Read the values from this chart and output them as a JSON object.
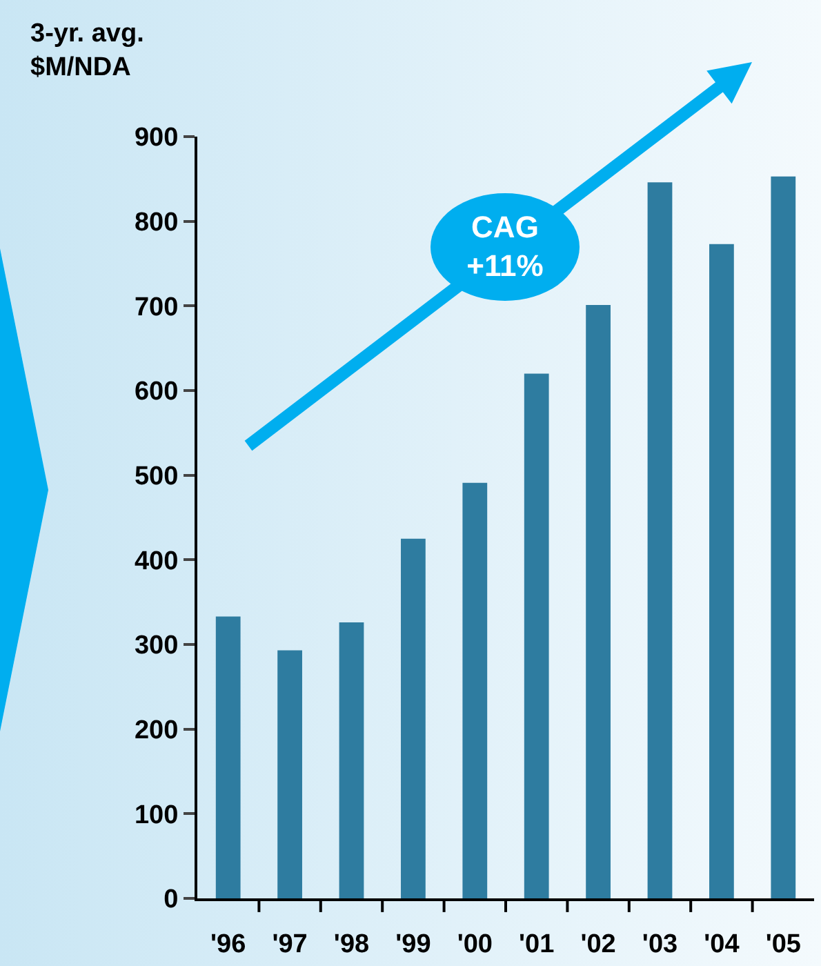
{
  "chart_data": {
    "type": "bar",
    "ylabel": "3-yr. avg.\n$M/NDA",
    "categories": [
      "'96",
      "'97",
      "'98",
      "'99",
      "'00",
      "'01",
      "'02",
      "'03",
      "'04",
      "'05"
    ],
    "values": [
      333,
      293,
      326,
      425,
      491,
      620,
      701,
      846,
      773,
      853
    ],
    "color": "#2e7ca0",
    "ylim": [
      0,
      900
    ],
    "yticks": [
      0,
      100,
      200,
      300,
      400,
      500,
      600,
      700,
      800,
      900
    ],
    "grid": false,
    "legend": false,
    "annotations": [
      "CAG +11%"
    ]
  }
}
